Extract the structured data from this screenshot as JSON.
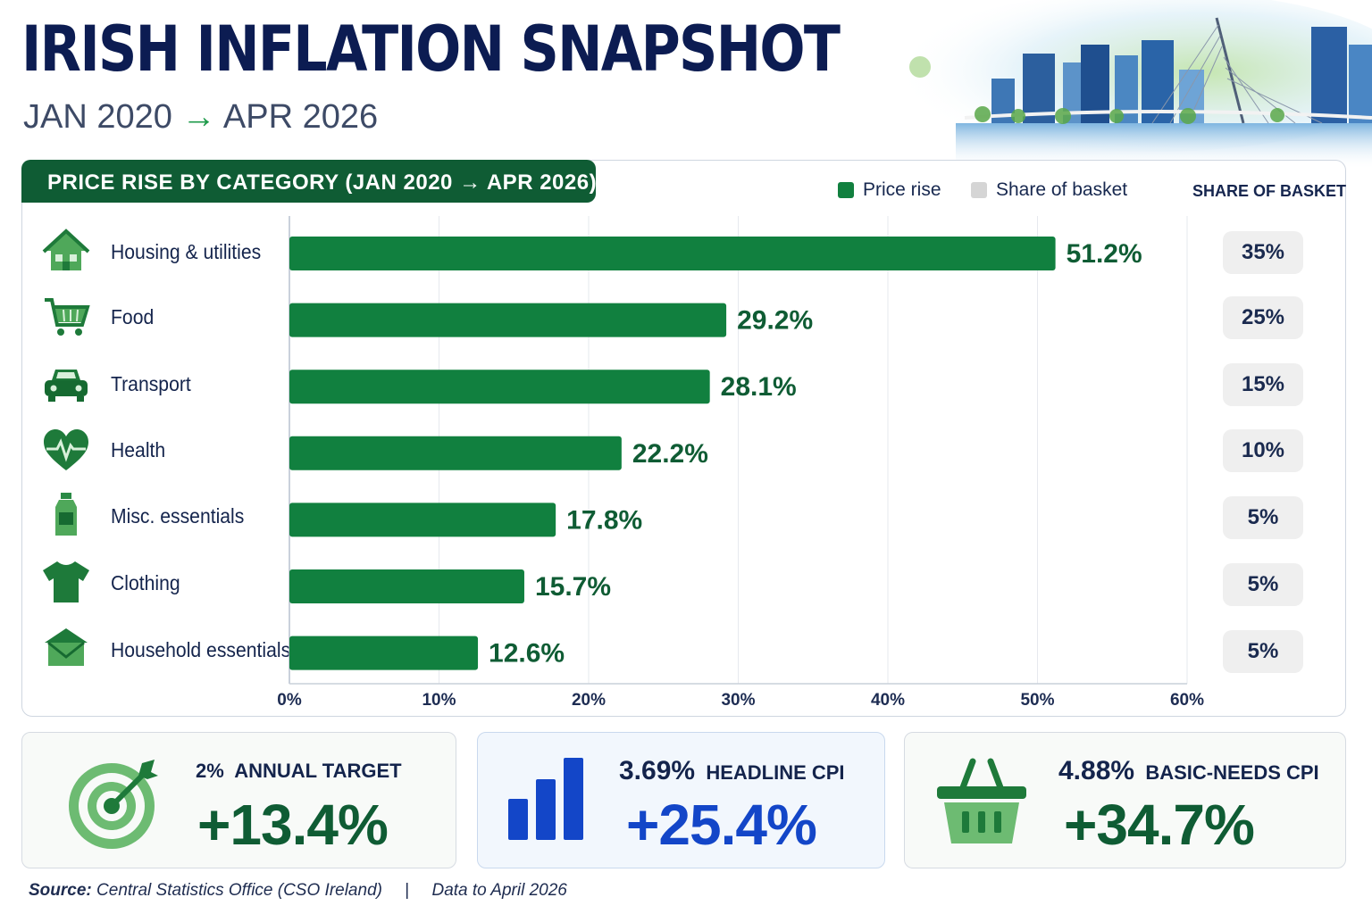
{
  "header": {
    "title": "IRISH INFLATION SNAPSHOT",
    "period_start": "JAN 2020",
    "period_arrow": "→",
    "period_end": "APR 2026"
  },
  "chart_data": {
    "type": "bar",
    "orientation": "horizontal",
    "title": "PRICE RISE BY CATEGORY (JAN 2020 → APR 2026)",
    "categories": [
      "Housing & utilities",
      "Food",
      "Transport",
      "Health",
      "Misc. essentials",
      "Clothing",
      "Household essentials"
    ],
    "series": [
      {
        "name": "Price rise",
        "values": [
          51.2,
          29.2,
          28.1,
          22.2,
          17.8,
          15.7,
          12.6
        ],
        "labels": [
          "51.2%",
          "29.2%",
          "28.1%",
          "22.2%",
          "17.8%",
          "15.7%",
          "12.6%"
        ]
      },
      {
        "name": "Share of basket",
        "values": [
          35,
          25,
          15,
          10,
          5,
          5,
          5
        ],
        "labels": [
          "35%",
          "25%",
          "15%",
          "10%",
          "5%",
          "5%",
          "5%"
        ]
      }
    ],
    "xlim": [
      0,
      60
    ],
    "xticks": [
      "0%",
      "10%",
      "20%",
      "30%",
      "40%",
      "50%",
      "60%"
    ],
    "share_column_header": "SHARE OF BASKET",
    "legend_placement": "top-right",
    "colors": {
      "price_rise": "#11803f",
      "share_of_basket": "#d5d5d5"
    }
  },
  "row_icons": [
    "house-icon",
    "cart-icon",
    "car-icon",
    "heart-pulse-icon",
    "bottle-icon",
    "tshirt-icon",
    "box-icon"
  ],
  "cards": [
    {
      "rate": "2%",
      "label": "ANNUAL TARGET",
      "value": "+13.4%",
      "icon": "target-icon",
      "color": "#0f5c34"
    },
    {
      "rate": "3.69%",
      "label": "HEADLINE CPI",
      "value": "+25.4%",
      "icon": "bar-chart-icon",
      "color": "#1346c8"
    },
    {
      "rate": "4.88%",
      "label": "BASIC-NEEDS CPI",
      "value": "+34.7%",
      "icon": "basket-icon",
      "color": "#0f5c34"
    }
  ],
  "footer": {
    "source_label": "Source:",
    "source_text": "Central Statistics Office (CSO Ireland)",
    "separator": "|",
    "data_note": "Data to April 2026"
  }
}
